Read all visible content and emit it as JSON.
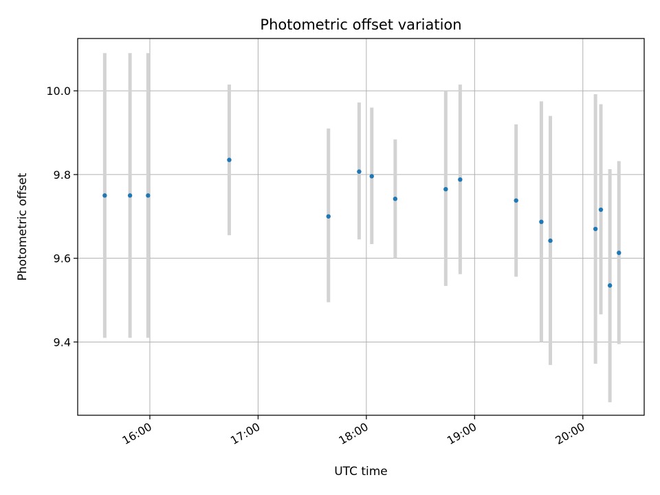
{
  "chart_data": {
    "type": "scatter",
    "title": "Photometric offset variation",
    "xlabel": "UTC time",
    "ylabel": "Photometric offset",
    "x_axis_type": "time",
    "xlim": [
      "15:20",
      "20:34"
    ],
    "ylim": [
      9.225,
      10.125
    ],
    "xticks": [
      "16:00",
      "17:00",
      "18:00",
      "19:00",
      "20:00"
    ],
    "yticks": [
      9.4,
      9.6,
      9.8,
      10.0
    ],
    "ytick_labels": [
      "9.4",
      "9.6",
      "9.8",
      "10.0"
    ],
    "grid": true,
    "error_bar_color": "#d3d3d3",
    "point_color": "#1f77b4",
    "points": [
      {
        "x": "15:35",
        "y": 9.75,
        "ylow": 9.41,
        "yhigh": 10.09
      },
      {
        "x": "15:49",
        "y": 9.75,
        "ylow": 9.41,
        "yhigh": 10.09
      },
      {
        "x": "15:59",
        "y": 9.75,
        "ylow": 9.41,
        "yhigh": 10.09
      },
      {
        "x": "16:44",
        "y": 9.835,
        "ylow": 9.655,
        "yhigh": 10.015
      },
      {
        "x": "17:39",
        "y": 9.7,
        "ylow": 9.495,
        "yhigh": 9.91
      },
      {
        "x": "17:56",
        "y": 9.807,
        "ylow": 9.645,
        "yhigh": 9.972
      },
      {
        "x": "18:03",
        "y": 9.796,
        "ylow": 9.634,
        "yhigh": 9.96
      },
      {
        "x": "18:16",
        "y": 9.742,
        "ylow": 9.6,
        "yhigh": 9.884
      },
      {
        "x": "18:44",
        "y": 9.765,
        "ylow": 9.534,
        "yhigh": 10.0
      },
      {
        "x": "18:52",
        "y": 9.788,
        "ylow": 9.562,
        "yhigh": 10.015
      },
      {
        "x": "19:23",
        "y": 9.738,
        "ylow": 9.556,
        "yhigh": 9.92
      },
      {
        "x": "19:37",
        "y": 9.687,
        "ylow": 9.4,
        "yhigh": 9.975
      },
      {
        "x": "19:42",
        "y": 9.642,
        "ylow": 9.345,
        "yhigh": 9.94
      },
      {
        "x": "20:07",
        "y": 9.67,
        "ylow": 9.348,
        "yhigh": 9.992
      },
      {
        "x": "20:10",
        "y": 9.716,
        "ylow": 9.466,
        "yhigh": 9.968
      },
      {
        "x": "20:15",
        "y": 9.535,
        "ylow": 9.256,
        "yhigh": 9.813
      },
      {
        "x": "20:20",
        "y": 9.613,
        "ylow": 9.395,
        "yhigh": 9.832
      }
    ]
  }
}
